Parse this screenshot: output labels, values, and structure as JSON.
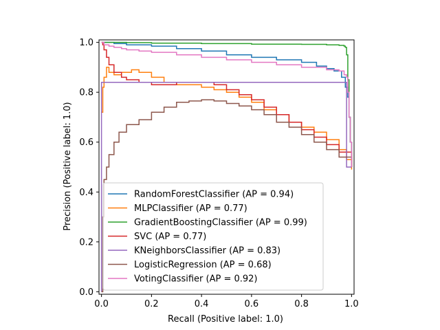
{
  "chart_data": {
    "type": "line",
    "xlabel": "Recall (Positive label: 1.0)",
    "ylabel": "Precision (Positive label: 1.0)",
    "xlim": [
      -0.01,
      1.01
    ],
    "ylim": [
      -0.01,
      1.01
    ],
    "x_ticks": [
      0.0,
      0.2,
      0.4,
      0.6,
      0.8,
      1.0
    ],
    "x_tick_labels": [
      "0.0",
      "0.2",
      "0.4",
      "0.6",
      "0.8",
      "1.0"
    ],
    "y_ticks": [
      0.0,
      0.2,
      0.4,
      0.6,
      0.8,
      1.0
    ],
    "y_tick_labels": [
      "0.0",
      "0.2",
      "0.4",
      "0.6",
      "0.8",
      "1.0"
    ],
    "grid": false,
    "legend_position": "lower-left",
    "series": [
      {
        "name": "RandomForestClassifier (AP = 0.94)",
        "color": "#1f77b4",
        "x": [
          0.0,
          0.005,
          0.01,
          0.05,
          0.1,
          0.2,
          0.3,
          0.4,
          0.5,
          0.6,
          0.7,
          0.8,
          0.86,
          0.9,
          0.93,
          0.96,
          0.975,
          0.985,
          0.99,
          0.995,
          1.0
        ],
        "y": [
          1.0,
          1.0,
          1.0,
          0.995,
          0.99,
          0.985,
          0.975,
          0.965,
          0.95,
          0.94,
          0.93,
          0.92,
          0.905,
          0.895,
          0.885,
          0.86,
          0.82,
          0.78,
          0.7,
          0.6,
          0.5
        ]
      },
      {
        "name": "MLPClassifier (AP = 0.77)",
        "color": "#ff7f0e",
        "x": [
          0.0,
          0.005,
          0.01,
          0.02,
          0.03,
          0.05,
          0.08,
          0.12,
          0.15,
          0.2,
          0.25,
          0.3,
          0.35,
          0.4,
          0.45,
          0.5,
          0.55,
          0.6,
          0.65,
          0.7,
          0.75,
          0.8,
          0.85,
          0.9,
          0.95,
          0.98,
          1.0
        ],
        "y": [
          0.72,
          0.82,
          0.86,
          0.9,
          0.88,
          0.87,
          0.88,
          0.89,
          0.88,
          0.86,
          0.84,
          0.83,
          0.83,
          0.82,
          0.81,
          0.8,
          0.78,
          0.76,
          0.73,
          0.71,
          0.68,
          0.66,
          0.64,
          0.61,
          0.57,
          0.53,
          0.49
        ]
      },
      {
        "name": "GradientBoostingClassifier (AP = 0.99)",
        "color": "#2ca02c",
        "x": [
          0.0,
          0.01,
          0.1,
          0.2,
          0.4,
          0.6,
          0.8,
          0.9,
          0.95,
          0.97,
          0.975,
          0.98,
          0.985,
          0.99,
          0.995,
          1.0
        ],
        "y": [
          1.0,
          1.0,
          0.999,
          0.997,
          0.995,
          0.993,
          0.992,
          0.99,
          0.988,
          0.985,
          0.98,
          0.95,
          0.85,
          0.7,
          0.6,
          0.5
        ]
      },
      {
        "name": "SVC (AP = 0.77)",
        "color": "#d62728",
        "x": [
          0.0,
          0.005,
          0.01,
          0.02,
          0.03,
          0.05,
          0.08,
          0.1,
          0.15,
          0.2,
          0.25,
          0.3,
          0.35,
          0.4,
          0.45,
          0.5,
          0.55,
          0.6,
          0.65,
          0.7,
          0.75,
          0.8,
          0.85,
          0.9,
          0.95,
          1.0
        ],
        "y": [
          1.0,
          0.99,
          0.97,
          0.94,
          0.91,
          0.88,
          0.86,
          0.85,
          0.84,
          0.83,
          0.83,
          0.84,
          0.84,
          0.84,
          0.83,
          0.81,
          0.79,
          0.77,
          0.74,
          0.71,
          0.68,
          0.65,
          0.62,
          0.59,
          0.56,
          0.5
        ]
      },
      {
        "name": "KNeighborsClassifier (AP = 0.83)",
        "color": "#9467bd",
        "x": [
          0.0,
          0.0,
          0.98,
          0.98,
          1.0
        ],
        "y": [
          0.0,
          0.84,
          0.84,
          0.5,
          0.5
        ]
      },
      {
        "name": "LogisticRegression (AP = 0.68)",
        "color": "#8c564b",
        "x": [
          0.0,
          0.005,
          0.01,
          0.02,
          0.03,
          0.05,
          0.07,
          0.1,
          0.15,
          0.2,
          0.25,
          0.3,
          0.35,
          0.4,
          0.45,
          0.5,
          0.55,
          0.6,
          0.65,
          0.7,
          0.75,
          0.8,
          0.85,
          0.9,
          0.95,
          1.0
        ],
        "y": [
          0.0,
          0.3,
          0.45,
          0.5,
          0.55,
          0.6,
          0.64,
          0.67,
          0.69,
          0.72,
          0.74,
          0.76,
          0.765,
          0.77,
          0.765,
          0.755,
          0.745,
          0.73,
          0.71,
          0.68,
          0.66,
          0.63,
          0.6,
          0.57,
          0.54,
          0.5
        ]
      },
      {
        "name": "VotingClassifier (AP = 0.92)",
        "color": "#e377c2",
        "x": [
          0.0,
          0.01,
          0.03,
          0.05,
          0.08,
          0.1,
          0.15,
          0.2,
          0.3,
          0.4,
          0.5,
          0.6,
          0.7,
          0.8,
          0.9,
          0.95,
          0.97,
          0.98,
          0.985,
          0.99,
          0.995,
          1.0
        ],
        "y": [
          1.0,
          0.99,
          0.985,
          0.98,
          0.975,
          0.97,
          0.965,
          0.96,
          0.95,
          0.94,
          0.93,
          0.92,
          0.91,
          0.9,
          0.89,
          0.885,
          0.87,
          0.86,
          0.8,
          0.7,
          0.6,
          0.5
        ]
      }
    ]
  }
}
